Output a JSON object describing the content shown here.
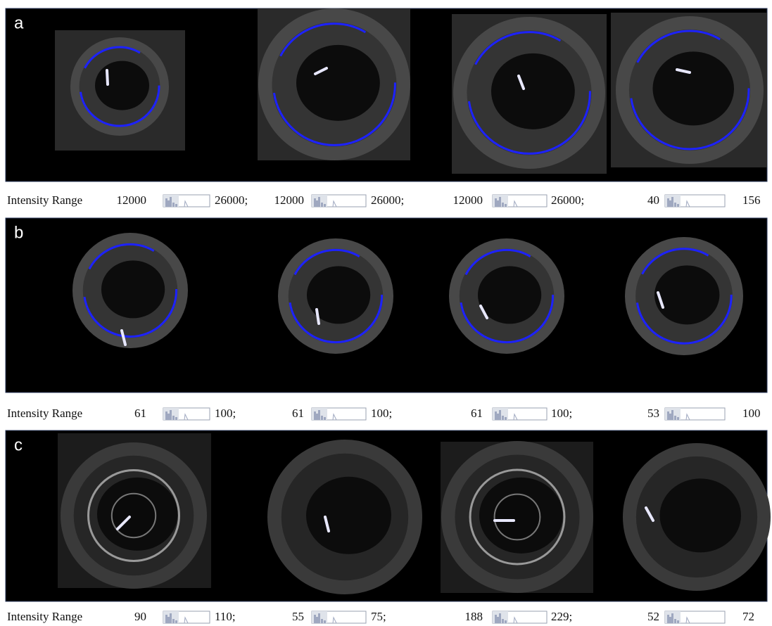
{
  "panels": [
    {
      "label": "a",
      "range_label": "Intensity Range",
      "ranges": [
        {
          "min": "12000",
          "max": "26000;"
        },
        {
          "min": "12000",
          "max": "26000;"
        },
        {
          "min": "12000",
          "max": "26000;"
        },
        {
          "min": "40",
          "max": "156"
        }
      ]
    },
    {
      "label": "b",
      "range_label": "Intensity Range",
      "ranges": [
        {
          "min": "61",
          "max": "100;"
        },
        {
          "min": "61",
          "max": "100;"
        },
        {
          "min": "61",
          "max": "100;"
        },
        {
          "min": "53",
          "max": "100"
        }
      ]
    },
    {
      "label": "c",
      "range_label": "Intensity Range",
      "ranges": [
        {
          "min": "90",
          "max": "110;"
        },
        {
          "min": "55",
          "max": "75;"
        },
        {
          "min": "188",
          "max": "229;"
        },
        {
          "min": "52",
          "max": "72"
        }
      ]
    }
  ]
}
